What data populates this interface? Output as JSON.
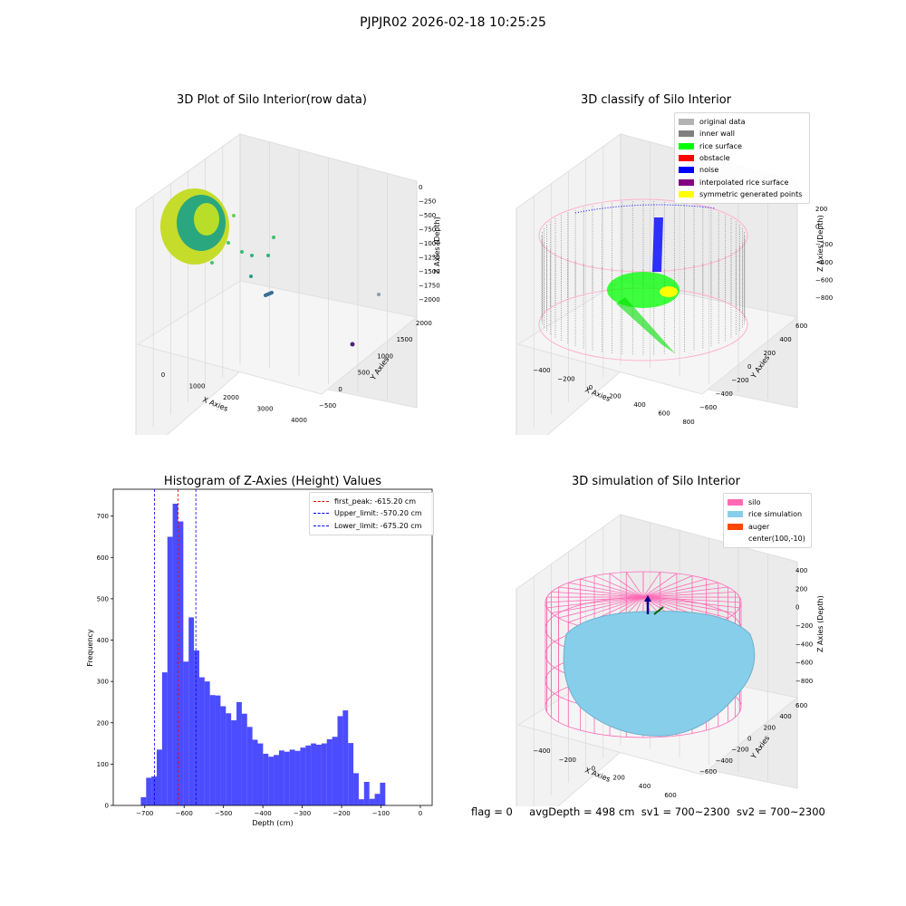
{
  "suptitle": "PJPJR02 2026-02-18 10:25:25",
  "panels": {
    "raw": {
      "title": "3D Plot of Silo Interior(row data)",
      "xlabel": "X Axies",
      "ylabel": "Y Axies",
      "zlabel": "Z Axies (Depth)",
      "xticks": [
        "0",
        "1000",
        "2000",
        "3000",
        "4000"
      ],
      "yticks": [
        "-500",
        "0",
        "500",
        "1000",
        "1500",
        "2000"
      ],
      "zticks": [
        "0",
        "-250",
        "-500",
        "-750",
        "-1000",
        "-1250",
        "-1500",
        "-1750",
        "-2000"
      ]
    },
    "classify": {
      "title": "3D classify of Silo Interior",
      "xlabel": "X Axies",
      "ylabel": "Y Axies",
      "zlabel": "Z Axies (Depth)",
      "xticks": [
        "-400",
        "-200",
        "0",
        "200",
        "400",
        "600",
        "800"
      ],
      "yticks": [
        "-600",
        "-400",
        "-200",
        "0",
        "200",
        "400",
        "600"
      ],
      "zticks": [
        "200",
        "0",
        "-200",
        "-400",
        "-600",
        "-800"
      ],
      "legend": [
        {
          "label": "original data",
          "color": "#b3b3b3"
        },
        {
          "label": "inner wall",
          "color": "#808080"
        },
        {
          "label": "rice surface",
          "color": "#00ff00"
        },
        {
          "label": "obstacle",
          "color": "#ff0000"
        },
        {
          "label": "noise",
          "color": "#0000ff"
        },
        {
          "label": "interpolated rice surface",
          "color": "#800080"
        },
        {
          "label": "symmetric generated points",
          "color": "#ffff00"
        }
      ]
    },
    "simulation": {
      "title": "3D simulation of Silo Interior",
      "xlabel": "X Axies",
      "ylabel": "Y Axies",
      "zlabel": "Z Axies (Depth)",
      "xticks": [
        "-400",
        "-200",
        "0",
        "200",
        "400",
        "600"
      ],
      "yticks": [
        "-600",
        "-400",
        "-200",
        "0",
        "200",
        "400",
        "600"
      ],
      "zticks": [
        "400",
        "200",
        "0",
        "-200",
        "-400",
        "-600",
        "-800"
      ],
      "legend": [
        {
          "label": "silo",
          "color": "#ff69b4"
        },
        {
          "label": "rice simulation",
          "color": "#87ceeb"
        },
        {
          "label": "auger",
          "color": "#ff4500"
        },
        {
          "label": "center(100,-10)",
          "color": ""
        }
      ]
    }
  },
  "footer": {
    "flag": "flag = 0",
    "avg": "avgDepth = 498 cm",
    "sv1": "sv1 = 700~2300",
    "sv2": "sv2 = 700~2300"
  },
  "chart_data": {
    "type": "bar",
    "title": "Histogram of Z-Axies (Height) Values",
    "xlabel": "Depth (cm)",
    "ylabel": "Frequency",
    "xlim": [
      -780,
      30
    ],
    "ylim": [
      0,
      765
    ],
    "bin_width": 13.5,
    "xticks": [
      -700,
      -600,
      -500,
      -400,
      -300,
      -200,
      -100,
      0
    ],
    "yticks": [
      0,
      100,
      200,
      300,
      400,
      500,
      600,
      700
    ],
    "bin_starts": [
      -710,
      -696.5,
      -683,
      -669.5,
      -656,
      -642.5,
      -629,
      -615.5,
      -602,
      -588.5,
      -575,
      -561.5,
      -548,
      -534.5,
      -521,
      -507.5,
      -494,
      -480.5,
      -467,
      -453.5,
      -440,
      -426.5,
      -413,
      -399.5,
      -386,
      -372.5,
      -359,
      -345.5,
      -332,
      -318.5,
      -305,
      -291.5,
      -278,
      -264.5,
      -251,
      -237.5,
      -224,
      -210.5,
      -197,
      -183.5,
      -170,
      -156.5,
      -143,
      -129.5,
      -116,
      -102.5,
      -89,
      -75.5,
      -62,
      -48.5,
      -35,
      -21.5,
      -8
    ],
    "values": [
      20,
      67,
      70,
      135,
      322,
      650,
      730,
      687,
      348,
      455,
      375,
      310,
      300,
      267,
      266,
      240,
      223,
      206,
      250,
      222,
      190,
      159,
      150,
      125,
      118,
      122,
      133,
      130,
      135,
      132,
      140,
      145,
      150,
      147,
      150,
      160,
      166,
      216,
      230,
      151,
      78,
      15,
      57,
      16,
      28,
      55,
      0,
      0,
      0,
      0,
      0,
      0,
      0
    ],
    "bar_color": "#0000ff",
    "bar_alpha": 0.7,
    "vlines": [
      {
        "x": -615.2,
        "label": "first_peak: -615.20 cm",
        "color": "#ff0000"
      },
      {
        "x": -570.2,
        "label": "Upper_limit: -570.20 cm",
        "color": "#0000ff"
      },
      {
        "x": -675.2,
        "label": "Lower_limit: -675.20 cm",
        "color": "#0000ff"
      }
    ],
    "legend_position": "top-right"
  }
}
